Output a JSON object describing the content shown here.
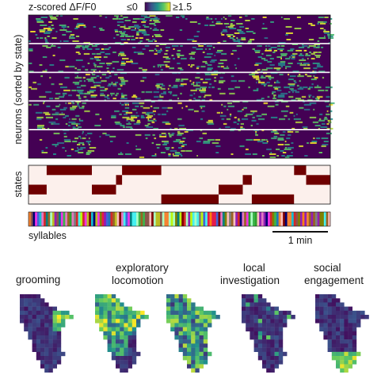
{
  "chart_data": [
    {
      "type": "heatmap",
      "title": "z-scored ΔF/F0",
      "ylabel": "neurons (sorted by state)",
      "colorbar": {
        "min_label": "≤0",
        "max_label": "≥1.5",
        "colormap": "viridis"
      },
      "cluster_count": 5,
      "state_blocks": [
        {
          "state": 1,
          "start": 0.18,
          "end": 0.31
        },
        {
          "state": 1,
          "start": 0.53,
          "end": 0.64
        },
        {
          "state": 1,
          "start": 0.83,
          "end": 0.96
        },
        {
          "state": 2,
          "start": 0.15,
          "end": 0.2
        },
        {
          "state": 2,
          "start": 0.41,
          "end": 0.51
        },
        {
          "state": 2,
          "start": 0.74,
          "end": 0.86
        },
        {
          "state": 3,
          "start": 0.02,
          "end": 0.17
        },
        {
          "state": 3,
          "start": 0.27,
          "end": 0.42
        },
        {
          "state": 3,
          "start": 0.63,
          "end": 0.72
        },
        {
          "state": 3,
          "start": 0.96,
          "end": 1.0
        }
      ]
    },
    {
      "type": "heatmap",
      "ylabel": "states",
      "n_states": 4,
      "segments": [
        {
          "state": 3,
          "start": 0.0,
          "end": 0.06
        },
        {
          "state": 1,
          "start": 0.06,
          "end": 0.21
        },
        {
          "state": 3,
          "start": 0.21,
          "end": 0.29
        },
        {
          "state": 2,
          "start": 0.29,
          "end": 0.31
        },
        {
          "state": 1,
          "start": 0.31,
          "end": 0.44
        },
        {
          "state": 4,
          "start": 0.44,
          "end": 0.63
        },
        {
          "state": 3,
          "start": 0.63,
          "end": 0.71
        },
        {
          "state": 2,
          "start": 0.71,
          "end": 0.74
        },
        {
          "state": 4,
          "start": 0.74,
          "end": 0.88
        },
        {
          "state": 1,
          "start": 0.88,
          "end": 0.92
        },
        {
          "state": 2,
          "start": 0.92,
          "end": 1.0
        }
      ],
      "colors": {
        "on": "#6f0000",
        "off": "#fcf0ec"
      }
    },
    {
      "type": "heatmap",
      "xlabel": "syllables",
      "scale_bar_label": "1 min",
      "n_syllables": 140
    },
    {
      "type": "heatmap",
      "panels": [
        {
          "label": "grooming",
          "hotspot": "right-upper"
        },
        {
          "label": "exploratory locomotion",
          "hotspot": "upper-left"
        },
        {
          "label": "",
          "hotspot": "diffuse"
        },
        {
          "label": "local investigation",
          "hotspot": "sparse"
        },
        {
          "label": "social engagement",
          "hotspot": "lower"
        }
      ],
      "colormap": "viridis"
    }
  ]
}
